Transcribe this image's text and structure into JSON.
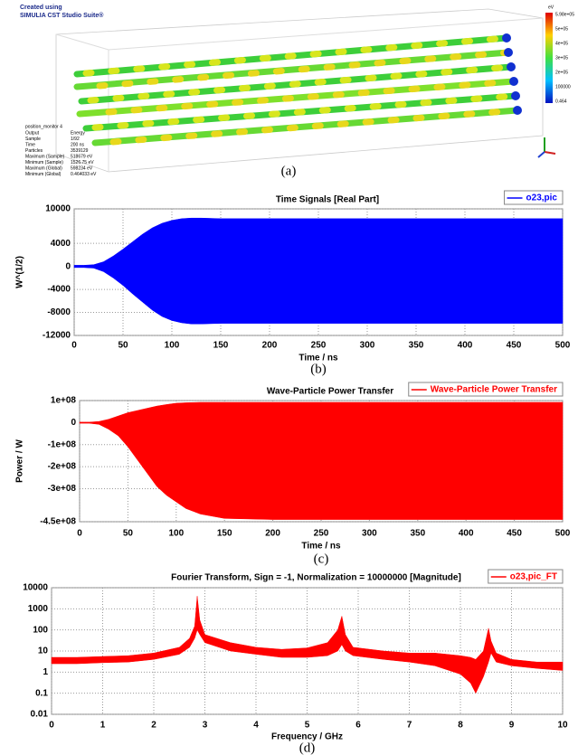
{
  "panel_a": {
    "credit_line1": "Created using",
    "credit_line2": "SIMULIA CST Studio Suite®",
    "monitor": "position_monitor 4",
    "info": [
      [
        "Output",
        "Energy"
      ],
      [
        "Sample",
        "1/92"
      ],
      [
        "Time",
        "200 ns"
      ],
      [
        "Particles",
        "3539129"
      ],
      [
        "Maximum (Sample)",
        "518679 eV"
      ],
      [
        "Minimum (Sample)",
        "1526.75 eV"
      ],
      [
        "Maximum (Global)",
        "598234 eV"
      ],
      [
        "Minimum (Global)",
        "0.464033 eV"
      ]
    ],
    "colorbar": {
      "unit": "eV",
      "labels": [
        "5.98e+05",
        "5e+05",
        "4e+05",
        "3e+05",
        "2e+05",
        "100000",
        "0.464"
      ]
    },
    "caption": "(a)"
  },
  "chart_data": [
    {
      "type": "band",
      "title": "Time Signals [Real Part]",
      "x_label": "Time / ns",
      "y_label": "W^(1/2)",
      "caption": "(b)",
      "legend": "upper right",
      "grid": true,
      "xlim": [
        0,
        500
      ],
      "xticks": [
        0,
        50,
        100,
        150,
        200,
        250,
        300,
        350,
        400,
        450,
        500
      ],
      "ylim": [
        -12000,
        10000
      ],
      "yticks": [
        -12000,
        -8000,
        -4000,
        0,
        4000,
        10000
      ],
      "series": [
        {
          "name": "o23,pic",
          "color": "#0000ff",
          "x": [
            0,
            10,
            20,
            30,
            40,
            50,
            60,
            70,
            80,
            90,
            100,
            110,
            120,
            130,
            150,
            200,
            300,
            400,
            500
          ],
          "max": [
            200,
            200,
            300,
            800,
            1800,
            3000,
            4300,
            5600,
            6700,
            7500,
            8000,
            8300,
            8400,
            8400,
            8300,
            8300,
            8300,
            8300,
            8300
          ],
          "min": [
            -200,
            -200,
            -300,
            -900,
            -2000,
            -3300,
            -4800,
            -6200,
            -7600,
            -8700,
            -9400,
            -9800,
            -10000,
            -10000,
            -9900,
            -9900,
            -9900,
            -9900,
            -9900
          ]
        }
      ]
    },
    {
      "type": "band",
      "title": "Wave-Particle Power Transfer",
      "x_label": "Time / ns",
      "y_label": "Power / W",
      "caption": "(c)",
      "legend": "upper right",
      "grid": true,
      "xlim": [
        0,
        500
      ],
      "xticks": [
        0,
        50,
        100,
        150,
        200,
        250,
        300,
        350,
        400,
        450,
        500
      ],
      "ylim": [
        -450000000,
        100000000
      ],
      "yticks": [
        {
          "value": -450000000,
          "label": "-4.5e+08"
        },
        {
          "value": -300000000,
          "label": "-3e+08"
        },
        {
          "value": -200000000,
          "label": "-2e+08"
        },
        {
          "value": -100000000,
          "label": "-1e+08"
        },
        0,
        {
          "value": 100000000,
          "label": "1e+08"
        }
      ],
      "series": [
        {
          "name": "Wave-Particle Power Transfer",
          "color": "#ff0000",
          "x": [
            0,
            10,
            20,
            30,
            40,
            50,
            60,
            70,
            80,
            90,
            100,
            110,
            125,
            150,
            200,
            300,
            400,
            500
          ],
          "max": [
            2000000,
            2000000,
            5000000,
            15000000,
            30000000,
            45000000,
            55000000,
            65000000,
            75000000,
            82000000,
            88000000,
            90000000,
            92000000,
            92000000,
            92000000,
            92000000,
            92000000,
            92000000
          ],
          "min": [
            -3000000,
            -3000000,
            -8000000,
            -30000000,
            -60000000,
            -110000000,
            -170000000,
            -230000000,
            -290000000,
            -330000000,
            -360000000,
            -390000000,
            -415000000,
            -435000000,
            -440000000,
            -440000000,
            -440000000,
            -440000000
          ]
        }
      ]
    },
    {
      "type": "band",
      "title": "Fourier Transform, Sign = -1, Normalization = 10000000 [Magnitude]",
      "x_label": "Frequency / GHz",
      "caption": "(d)",
      "legend": "upper right",
      "grid": true,
      "log_y": true,
      "xlim": [
        0,
        10
      ],
      "xticks": [
        0,
        1,
        2,
        3,
        4,
        5,
        6,
        7,
        8,
        9,
        10
      ],
      "ylim": [
        0.01,
        10000
      ],
      "yticks": [
        0.01,
        0.1,
        1,
        10,
        100,
        1000,
        10000
      ],
      "series": [
        {
          "name": "o23,pic_FT",
          "color": "#ff0000",
          "x": [
            0,
            0.5,
            1,
            1.5,
            2,
            2.5,
            2.7,
            2.8,
            2.85,
            2.9,
            3,
            3.5,
            4,
            4.5,
            5,
            5.4,
            5.6,
            5.68,
            5.75,
            5.9,
            6.5,
            7,
            7.5,
            8,
            8.2,
            8.3,
            8.45,
            8.55,
            8.6,
            8.7,
            9,
            9.5,
            10
          ],
          "max": [
            5,
            5,
            5.5,
            6,
            8,
            15,
            40,
            150,
            4000,
            300,
            60,
            25,
            15,
            12,
            14,
            25,
            100,
            450,
            60,
            15,
            10,
            8,
            8,
            6,
            5,
            4,
            10,
            120,
            30,
            8,
            4,
            3,
            3
          ],
          "min": [
            2.5,
            2.5,
            2.8,
            3,
            4,
            7,
            15,
            40,
            100,
            60,
            25,
            10,
            7,
            5,
            5,
            6,
            10,
            20,
            10,
            6,
            4,
            3,
            2,
            0.8,
            0.3,
            0.1,
            0.6,
            3,
            8,
            3,
            2,
            1.5,
            1.2
          ]
        }
      ]
    }
  ]
}
